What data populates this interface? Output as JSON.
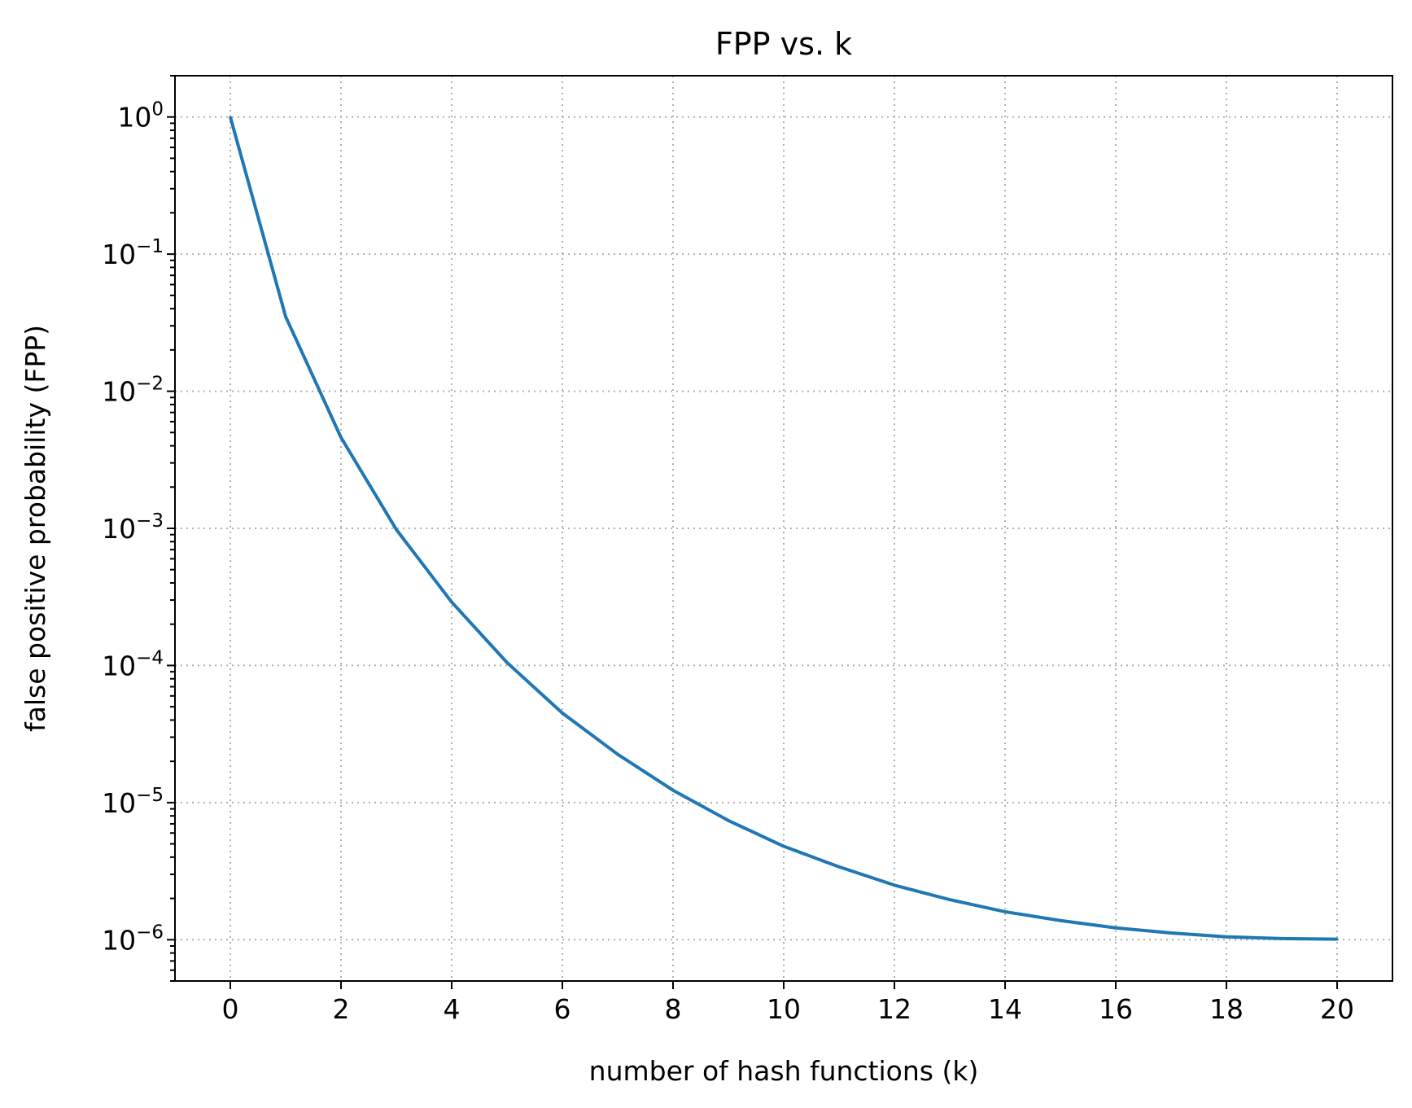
{
  "chart_data": {
    "type": "line",
    "title": "FPP vs. k",
    "xlabel": "number of hash functions (k)",
    "ylabel": "false positive probability (FPP)",
    "x_scale": "linear",
    "y_scale": "log",
    "xlim": [
      -1,
      21
    ],
    "ylim": [
      5e-07,
      2
    ],
    "x_ticks": [
      0,
      2,
      4,
      6,
      8,
      10,
      12,
      14,
      16,
      18,
      20
    ],
    "y_ticks": [
      {
        "value": 1,
        "base": "10",
        "exp": "0"
      },
      {
        "value": 0.1,
        "base": "10",
        "exp": "−1"
      },
      {
        "value": 0.01,
        "base": "10",
        "exp": "−2"
      },
      {
        "value": 0.001,
        "base": "10",
        "exp": "−3"
      },
      {
        "value": 0.0001,
        "base": "10",
        "exp": "−4"
      },
      {
        "value": 1e-05,
        "base": "10",
        "exp": "−5"
      },
      {
        "value": 1e-06,
        "base": "10",
        "exp": "−6"
      }
    ],
    "grid": true,
    "series": [
      {
        "color": "#1f77b4",
        "x": [
          0,
          1,
          2,
          3,
          4,
          5,
          6,
          7,
          8,
          9,
          10,
          11,
          12,
          13,
          14,
          15,
          16,
          17,
          18,
          19,
          20
        ],
        "y": [
          1.0,
          0.035,
          0.0046,
          0.00098,
          0.00029,
          0.000105,
          4.5e-05,
          2.25e-05,
          1.23e-05,
          7.4e-06,
          4.8e-06,
          3.4e-06,
          2.5e-06,
          1.96e-06,
          1.6e-06,
          1.38e-06,
          1.22e-06,
          1.12e-06,
          1.05e-06,
          1.02e-06,
          1.01e-06
        ]
      }
    ]
  }
}
